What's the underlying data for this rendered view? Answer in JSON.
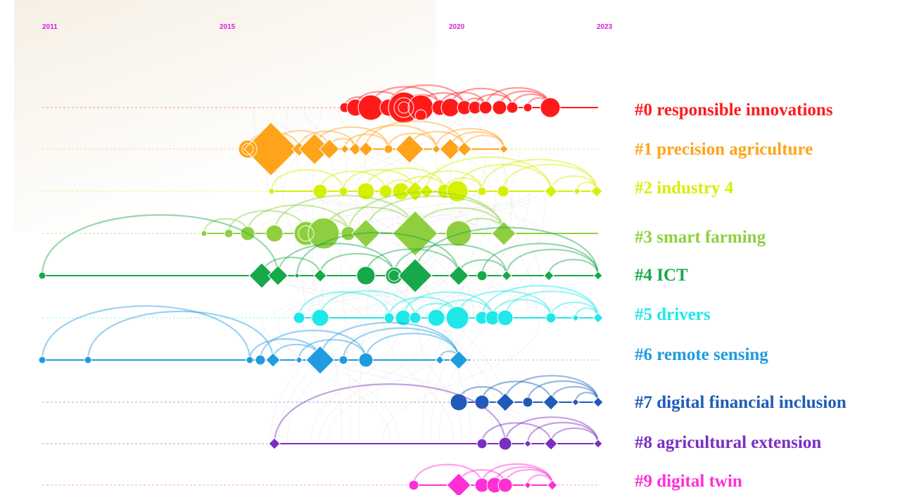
{
  "years": [
    "2011",
    "2015",
    "2020",
    "2023"
  ],
  "clusters": [
    {
      "id": "#0",
      "label": "responsible innovations",
      "color": "#ff1a1a"
    },
    {
      "id": "#1",
      "label": "precision agriculture",
      "color": "#ffa31a"
    },
    {
      "id": "#2",
      "label": "industry 4",
      "color": "#d6f000"
    },
    {
      "id": "#3",
      "label": "smart farming",
      "color": "#8fcf3f"
    },
    {
      "id": "#4",
      "label": "ICT",
      "color": "#17a84a"
    },
    {
      "id": "#5",
      "label": "drivers",
      "color": "#1ee8e8"
    },
    {
      "id": "#6",
      "label": "remote sensing",
      "color": "#1f9be0"
    },
    {
      "id": "#7",
      "label": "digital financial inclusion",
      "color": "#1f5bb8"
    },
    {
      "id": "#8",
      "label": "agricultural extension",
      "color": "#7a2fc2"
    },
    {
      "id": "#9",
      "label": "digital twin",
      "color": "#ff2fd6"
    }
  ]
}
